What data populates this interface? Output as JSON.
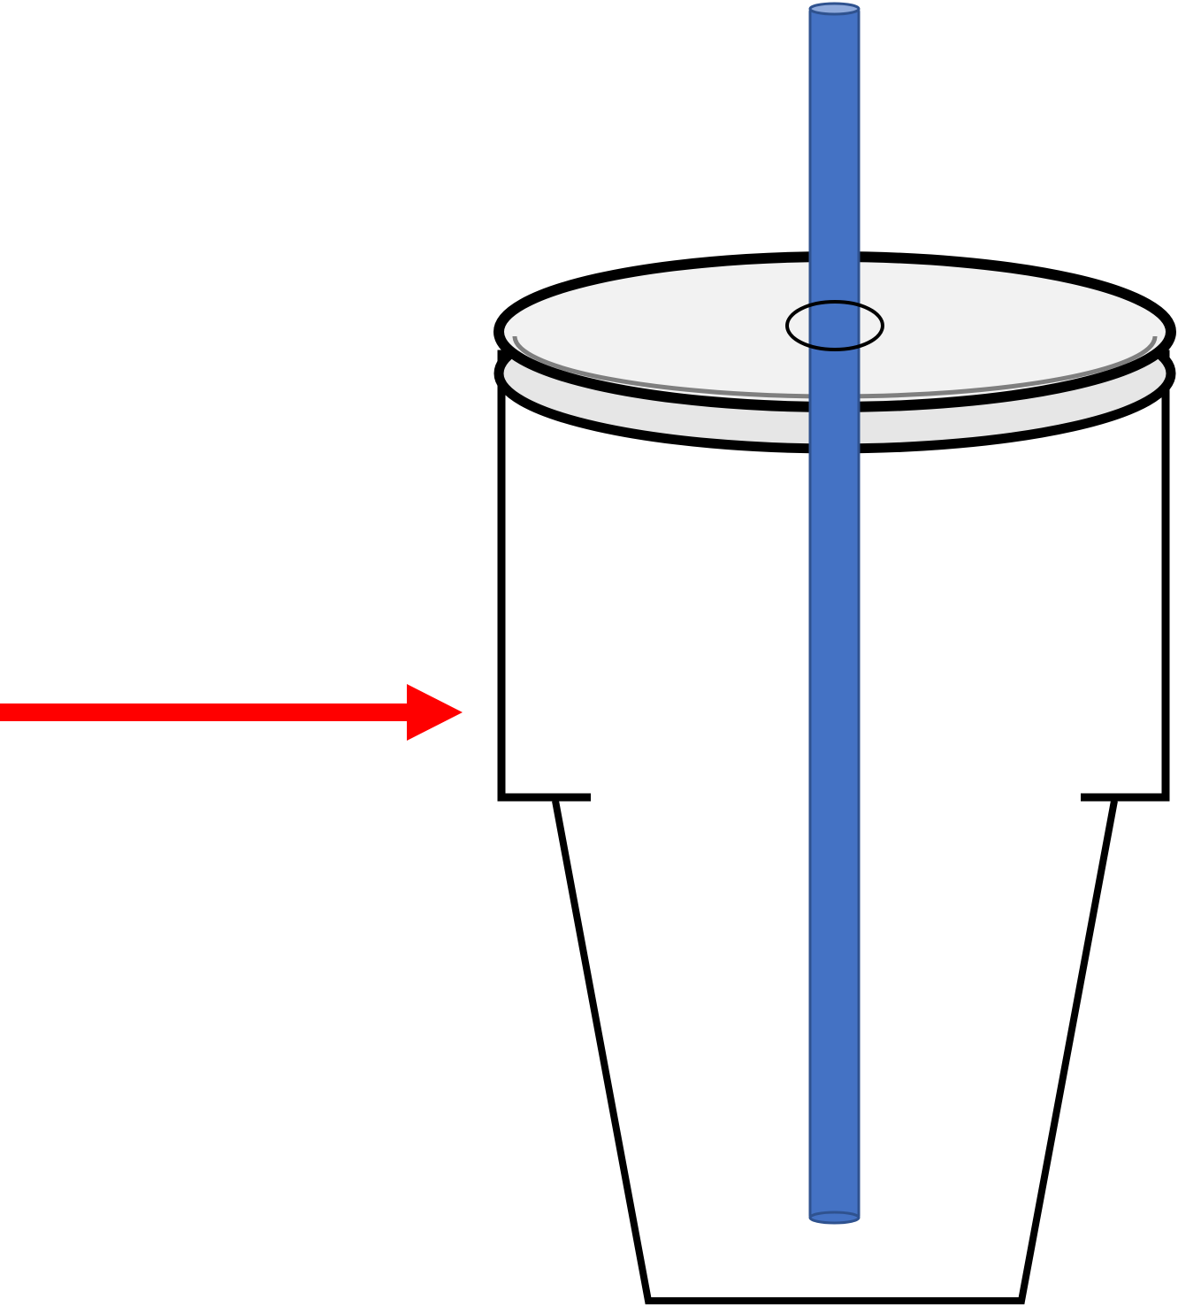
{
  "diagram": {
    "elements": [
      {
        "id": "cup",
        "label": ""
      },
      {
        "id": "lid",
        "label": ""
      },
      {
        "id": "straw",
        "label": ""
      },
      {
        "id": "arrow",
        "label": ""
      }
    ]
  },
  "colors": {
    "background": "#ffffff",
    "outline": "#000000",
    "lid_fill": "#f2f2f2",
    "lid_rim_fill": "#e6e6e6",
    "lid_shadow": "#7f7f7f",
    "straw_fill": "#4472c4",
    "straw_edge": "#2f528f",
    "straw_top": "#8faadc",
    "arrow": "#ff0000"
  }
}
